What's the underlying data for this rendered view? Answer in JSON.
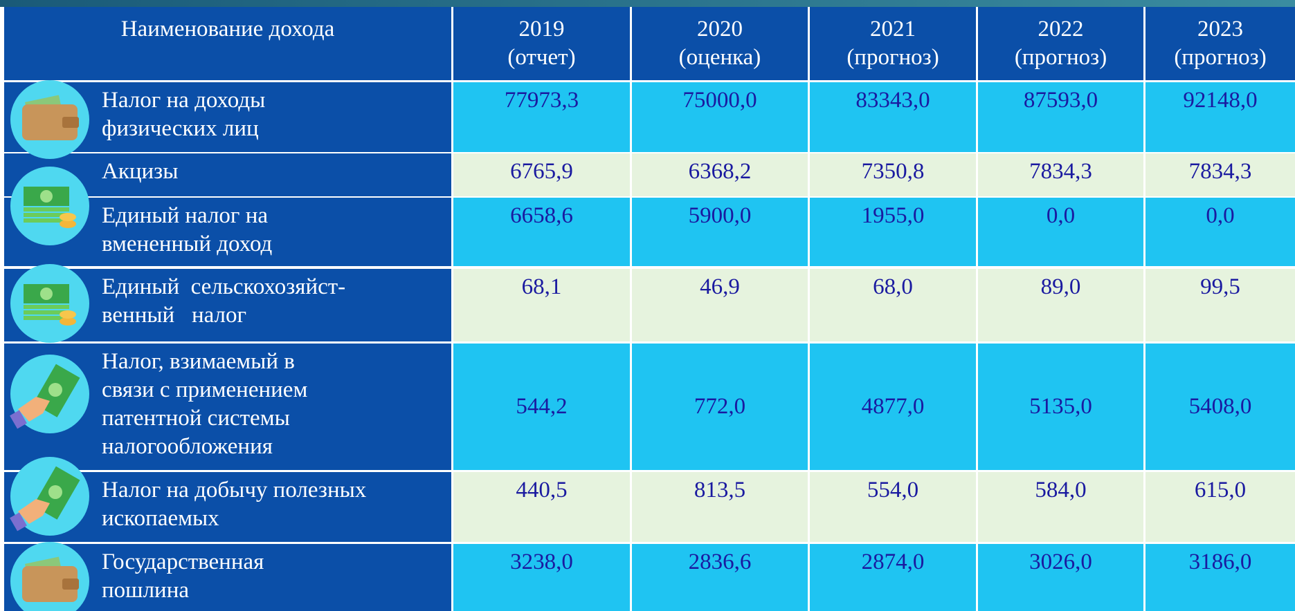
{
  "table": {
    "header": {
      "name": "Наименование дохода",
      "years": [
        {
          "year": "2019",
          "note": "(отчет)"
        },
        {
          "year": "2020",
          "note": "(оценка)"
        },
        {
          "year": "2021",
          "note": "(прогноз)"
        },
        {
          "year": "2022",
          "note": "(прогноз)"
        },
        {
          "year": "2023",
          "note": "(прогноз)"
        }
      ]
    },
    "rows": [
      {
        "name": [
          "Налог на доходы",
          "физических лиц"
        ],
        "values": [
          "77973,3",
          "75000,0",
          "83343,0",
          "87593,0",
          "92148,0"
        ]
      },
      {
        "name": [
          "Акцизы"
        ],
        "values": [
          "6765,9",
          "6368,2",
          "7350,8",
          "7834,3",
          "7834,3"
        ]
      },
      {
        "name": [
          "Единый налог на",
          "вмененный доход"
        ],
        "values": [
          "6658,6",
          "5900,0",
          "1955,0",
          "0,0",
          "0,0"
        ]
      },
      {
        "name": [
          "Единый  сельскохозяйст-",
          "венный   налог"
        ],
        "values": [
          "68,1",
          "46,9",
          "68,0",
          "89,0",
          "99,5"
        ]
      },
      {
        "name": [
          "Налог, взимаемый в",
          "связи с применением",
          "патентной системы",
          "налогообложения"
        ],
        "values": [
          "544,2",
          "772,0",
          "4877,0",
          "5135,0",
          "5408,0"
        ]
      },
      {
        "name": [
          "Налог на добычу полезных",
          "ископаемых"
        ],
        "values": [
          "440,5",
          "813,5",
          "554,0",
          "584,0",
          "615,0"
        ]
      },
      {
        "name": [
          "Государственная",
          "пошлина"
        ],
        "values": [
          "3238,0",
          "2836,6",
          "2874,0",
          "3026,0",
          "3186,0"
        ]
      }
    ]
  }
}
